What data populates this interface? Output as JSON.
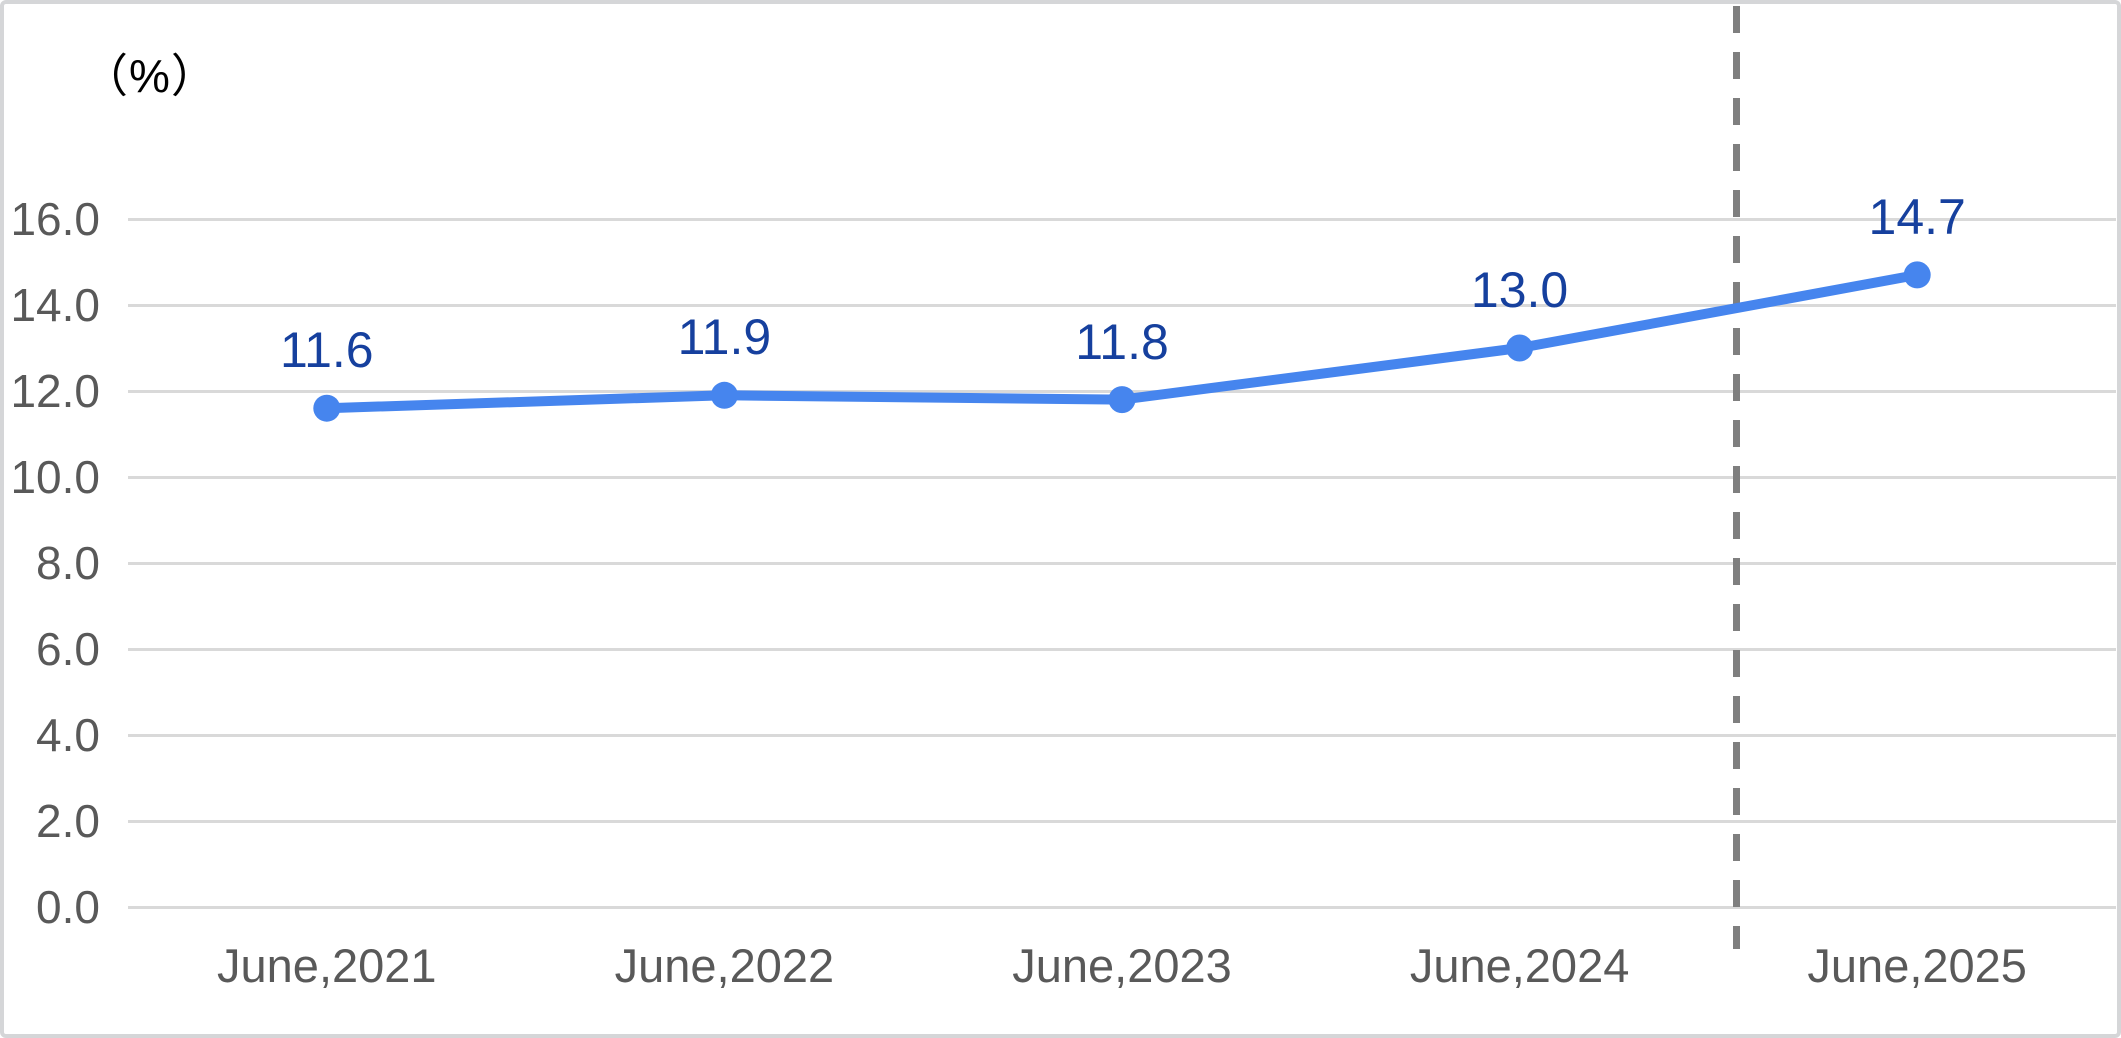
{
  "window": {
    "background": "#ffffff",
    "border_color": "#d5d6d8"
  },
  "chart_data": {
    "type": "line",
    "title": "",
    "unit_label": "（%）",
    "xlabel": "",
    "ylabel": "",
    "categories": [
      "June,2021",
      "June,2022",
      "June,2023",
      "June,2024",
      "June,2025"
    ],
    "series": [
      {
        "name": "percentage-series",
        "values": [
          11.6,
          11.9,
          11.8,
          13.0,
          14.7
        ],
        "color": "#4685ee",
        "marker": "circle",
        "line_width": 10,
        "marker_radius": 13.5
      }
    ],
    "data_labels": [
      "11.6",
      "11.9",
      "11.8",
      "13.0",
      "14.7"
    ],
    "data_label_color": "#16409e",
    "ylim": [
      0,
      16
    ],
    "ytick_values": [
      0,
      2,
      4,
      6,
      8,
      10,
      12,
      14,
      16
    ],
    "ytick_labels": [
      "0.0",
      "2.0",
      "4.0",
      "6.0",
      "8.0",
      "10.0",
      "12.0",
      "14.0",
      "16.0"
    ],
    "grid": true,
    "gridline_color": "#d9d9d9",
    "axis_text_color": "#595959",
    "legend": "none",
    "annotations": [
      {
        "type": "vertical-dashed-line",
        "between_categories": [
          "June,2024",
          "June,2025"
        ],
        "color": "#7f7f7f"
      }
    ]
  }
}
